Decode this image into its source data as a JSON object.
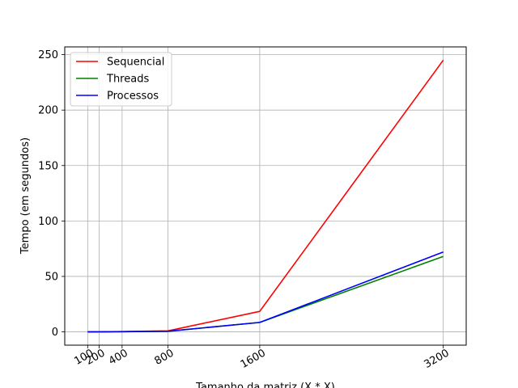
{
  "chart_data": {
    "type": "line",
    "xlabel": "Tamanho da matriz (X * X)",
    "ylabel": "Tempo (em segundos)",
    "x": [
      100,
      200,
      400,
      800,
      1600,
      3200
    ],
    "x_tick_labels": [
      "100",
      "200",
      "400",
      "800",
      "1600",
      "3200"
    ],
    "y_ticks": [
      0,
      50,
      100,
      150,
      200,
      250
    ],
    "xlim": [
      -100,
      3400
    ],
    "ylim": [
      -12,
      257
    ],
    "grid": true,
    "legend_position": "top-left",
    "series": [
      {
        "name": "Sequencial",
        "color": "#ff0000",
        "values": [
          0.01,
          0.05,
          0.3,
          0.9,
          18.5,
          245
        ]
      },
      {
        "name": "Threads",
        "color": "#008000",
        "values": [
          0.01,
          0.03,
          0.15,
          0.5,
          8.5,
          68
        ]
      },
      {
        "name": "Processos",
        "color": "#0000ff",
        "values": [
          0.01,
          0.03,
          0.15,
          0.5,
          8.5,
          72
        ]
      }
    ]
  }
}
